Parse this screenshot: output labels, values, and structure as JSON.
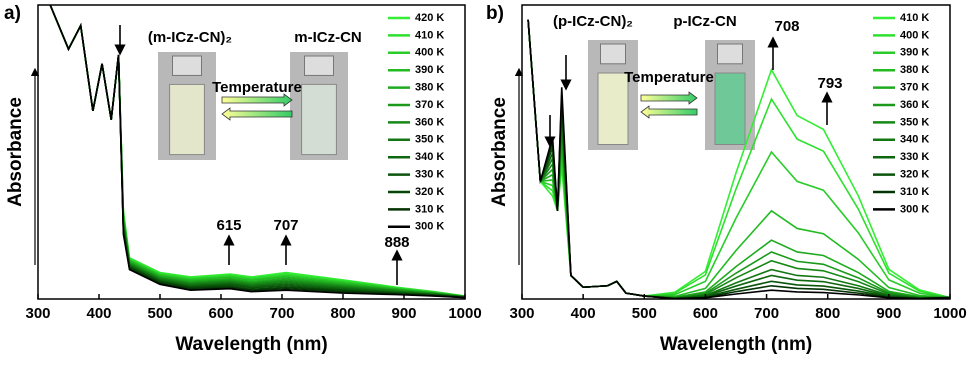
{
  "chart_data": [
    {
      "type": "line",
      "panel_label": "a)",
      "xlabel": "Wavelength (nm)",
      "ylabel": "Absorbance",
      "xlim": [
        300,
        1000
      ],
      "xticks": [
        300,
        400,
        500,
        600,
        700,
        800,
        900,
        1000
      ],
      "ylim": [
        0,
        1
      ],
      "annotations": [
        "(m-ICz-CN)₂",
        "m-ICz-CN",
        "Temperature",
        "615",
        "707",
        "888"
      ],
      "x": [
        320,
        350,
        370,
        390,
        405,
        420,
        432,
        440,
        450,
        500,
        550,
        615,
        650,
        707,
        800,
        888,
        950,
        1000
      ],
      "series": [
        {
          "name": "420 K",
          "color": "#33ee33",
          "values": [
            1.0,
            0.85,
            0.93,
            0.64,
            0.8,
            0.61,
            0.83,
            0.3,
            0.14,
            0.09,
            0.075,
            0.085,
            0.075,
            0.09,
            0.065,
            0.04,
            0.025,
            0.01
          ]
        },
        {
          "name": "410 K",
          "color": "#2ee02e",
          "values": [
            1.0,
            0.85,
            0.93,
            0.64,
            0.8,
            0.61,
            0.83,
            0.293,
            0.137,
            0.087,
            0.071,
            0.081,
            0.071,
            0.085,
            0.061,
            0.038,
            0.024,
            0.01
          ]
        },
        {
          "name": "400 K",
          "color": "#29cc29",
          "values": [
            1.0,
            0.85,
            0.93,
            0.64,
            0.8,
            0.61,
            0.83,
            0.287,
            0.133,
            0.083,
            0.068,
            0.077,
            0.067,
            0.08,
            0.058,
            0.036,
            0.023,
            0.009
          ]
        },
        {
          "name": "390 K",
          "color": "#22bb22",
          "values": [
            1.0,
            0.85,
            0.93,
            0.64,
            0.8,
            0.61,
            0.83,
            0.28,
            0.13,
            0.08,
            0.064,
            0.073,
            0.063,
            0.075,
            0.054,
            0.034,
            0.021,
            0.009
          ]
        },
        {
          "name": "380 K",
          "color": "#1faa1f",
          "values": [
            1.0,
            0.85,
            0.93,
            0.64,
            0.8,
            0.61,
            0.83,
            0.273,
            0.127,
            0.077,
            0.06,
            0.068,
            0.058,
            0.07,
            0.05,
            0.032,
            0.02,
            0.008
          ]
        },
        {
          "name": "370 K",
          "color": "#1a991a",
          "values": [
            1.0,
            0.85,
            0.93,
            0.64,
            0.8,
            0.61,
            0.83,
            0.267,
            0.123,
            0.073,
            0.056,
            0.064,
            0.054,
            0.065,
            0.046,
            0.03,
            0.019,
            0.008
          ]
        },
        {
          "name": "360 K",
          "color": "#168816",
          "values": [
            1.0,
            0.85,
            0.93,
            0.64,
            0.8,
            0.61,
            0.83,
            0.26,
            0.12,
            0.07,
            0.053,
            0.06,
            0.05,
            0.06,
            0.043,
            0.028,
            0.018,
            0.008
          ]
        },
        {
          "name": "350 K",
          "color": "#127712",
          "values": [
            1.0,
            0.85,
            0.93,
            0.64,
            0.8,
            0.61,
            0.83,
            0.253,
            0.117,
            0.067,
            0.049,
            0.056,
            0.046,
            0.055,
            0.039,
            0.025,
            0.016,
            0.007
          ]
        },
        {
          "name": "340 K",
          "color": "#0e660e",
          "values": [
            1.0,
            0.85,
            0.93,
            0.64,
            0.8,
            0.61,
            0.83,
            0.247,
            0.113,
            0.063,
            0.045,
            0.052,
            0.042,
            0.05,
            0.035,
            0.023,
            0.015,
            0.007
          ]
        },
        {
          "name": "330 K",
          "color": "#0a550a",
          "values": [
            1.0,
            0.85,
            0.93,
            0.64,
            0.8,
            0.61,
            0.83,
            0.24,
            0.11,
            0.06,
            0.041,
            0.048,
            0.038,
            0.045,
            0.031,
            0.021,
            0.014,
            0.006
          ]
        },
        {
          "name": "320 K",
          "color": "#074407",
          "values": [
            1.0,
            0.85,
            0.93,
            0.64,
            0.8,
            0.61,
            0.83,
            0.233,
            0.107,
            0.057,
            0.038,
            0.043,
            0.033,
            0.04,
            0.028,
            0.019,
            0.013,
            0.006
          ]
        },
        {
          "name": "310 K",
          "color": "#043304",
          "values": [
            1.0,
            0.85,
            0.93,
            0.64,
            0.8,
            0.61,
            0.83,
            0.227,
            0.103,
            0.053,
            0.034,
            0.039,
            0.029,
            0.035,
            0.024,
            0.017,
            0.011,
            0.005
          ]
        },
        {
          "name": "300 K",
          "color": "#000000",
          "values": [
            1.0,
            0.85,
            0.93,
            0.64,
            0.8,
            0.61,
            0.83,
            0.22,
            0.1,
            0.05,
            0.03,
            0.035,
            0.025,
            0.03,
            0.02,
            0.015,
            0.01,
            0.005
          ]
        }
      ]
    },
    {
      "type": "line",
      "panel_label": "b)",
      "xlabel": "Wavelength (nm)",
      "ylabel": "Absorbance",
      "xlim": [
        300,
        1000
      ],
      "xticks": [
        300,
        400,
        500,
        600,
        700,
        800,
        900,
        1000
      ],
      "ylim": [
        0,
        1
      ],
      "annotations": [
        "(p-ICz-CN)₂",
        "p-ICz-CN",
        "708",
        "793",
        "Temperature"
      ],
      "x": [
        310,
        330,
        350,
        358,
        365,
        380,
        400,
        440,
        455,
        470,
        500,
        550,
        600,
        650,
        708,
        750,
        793,
        850,
        900,
        950,
        1000
      ],
      "series": [
        {
          "name": "410 K",
          "color": "#33ee33",
          "values": [
            0.95,
            0.4,
            0.35,
            0.3,
            0.45,
            0.08,
            0.04,
            0.045,
            0.06,
            0.02,
            0.01,
            0.023,
            0.094,
            0.429,
            0.78,
            0.624,
            0.577,
            0.351,
            0.101,
            0.031,
            0.005
          ]
        },
        {
          "name": "400 K",
          "color": "#2ee02e",
          "values": [
            0.95,
            0.4,
            0.368,
            0.3,
            0.475,
            0.08,
            0.04,
            0.045,
            0.06,
            0.02,
            0.01,
            0.02,
            0.082,
            0.374,
            0.68,
            0.544,
            0.503,
            0.306,
            0.088,
            0.027,
            0.005
          ]
        },
        {
          "name": "390 K",
          "color": "#29cc29",
          "values": [
            0.95,
            0.4,
            0.386,
            0.3,
            0.499,
            0.08,
            0.04,
            0.045,
            0.06,
            0.02,
            0.01,
            0.015,
            0.06,
            0.275,
            0.5,
            0.4,
            0.37,
            0.225,
            0.065,
            0.02,
            0.005
          ]
        },
        {
          "name": "380 K",
          "color": "#22bb22",
          "values": [
            0.95,
            0.4,
            0.405,
            0.3,
            0.524,
            0.08,
            0.04,
            0.045,
            0.06,
            0.02,
            0.01,
            0.009,
            0.036,
            0.165,
            0.3,
            0.24,
            0.222,
            0.135,
            0.039,
            0.012,
            0.005
          ]
        },
        {
          "name": "370 K",
          "color": "#1faa1f",
          "values": [
            0.95,
            0.4,
            0.423,
            0.3,
            0.548,
            0.08,
            0.04,
            0.045,
            0.06,
            0.02,
            0.01,
            0.006,
            0.024,
            0.11,
            0.2,
            0.16,
            0.148,
            0.09,
            0.026,
            0.008,
            0.005
          ]
        },
        {
          "name": "360 K",
          "color": "#1a991a",
          "values": [
            0.95,
            0.4,
            0.441,
            0.3,
            0.573,
            0.08,
            0.04,
            0.045,
            0.06,
            0.02,
            0.01,
            0.005,
            0.019,
            0.088,
            0.16,
            0.128,
            0.118,
            0.072,
            0.021,
            0.006,
            0.005
          ]
        },
        {
          "name": "350 K",
          "color": "#168816",
          "values": [
            0.95,
            0.4,
            0.459,
            0.3,
            0.597,
            0.08,
            0.04,
            0.045,
            0.06,
            0.02,
            0.01,
            0.004,
            0.016,
            0.072,
            0.13,
            0.104,
            0.096,
            0.059,
            0.017,
            0.005,
            0.005
          ]
        },
        {
          "name": "340 K",
          "color": "#127712",
          "values": [
            0.95,
            0.4,
            0.477,
            0.3,
            0.622,
            0.08,
            0.04,
            0.045,
            0.06,
            0.02,
            0.01,
            0.003,
            0.012,
            0.055,
            0.1,
            0.08,
            0.074,
            0.045,
            0.013,
            0.004,
            0.005
          ]
        },
        {
          "name": "330 K",
          "color": "#0e660e",
          "values": [
            0.95,
            0.4,
            0.495,
            0.3,
            0.646,
            0.08,
            0.04,
            0.045,
            0.06,
            0.02,
            0.01,
            0.002,
            0.01,
            0.044,
            0.08,
            0.064,
            0.059,
            0.036,
            0.01,
            0.003,
            0.005
          ]
        },
        {
          "name": "320 K",
          "color": "#0a550a",
          "values": [
            0.95,
            0.4,
            0.514,
            0.3,
            0.671,
            0.08,
            0.04,
            0.045,
            0.06,
            0.02,
            0.01,
            0.002,
            0.007,
            0.033,
            0.06,
            0.048,
            0.044,
            0.027,
            0.008,
            0.002,
            0.005
          ]
        },
        {
          "name": "310 K",
          "color": "#043304",
          "values": [
            0.95,
            0.4,
            0.532,
            0.3,
            0.695,
            0.08,
            0.04,
            0.045,
            0.06,
            0.02,
            0.01,
            0.001,
            0.005,
            0.025,
            0.045,
            0.036,
            0.033,
            0.02,
            0.006,
            0.002,
            0.005
          ]
        },
        {
          "name": "300 K",
          "color": "#000000",
          "values": [
            0.95,
            0.4,
            0.55,
            0.3,
            0.72,
            0.08,
            0.04,
            0.045,
            0.06,
            0.02,
            0.01,
            0.001,
            0.004,
            0.017,
            0.03,
            0.024,
            0.022,
            0.014,
            0.004,
            0.001,
            0.005
          ]
        }
      ]
    }
  ]
}
